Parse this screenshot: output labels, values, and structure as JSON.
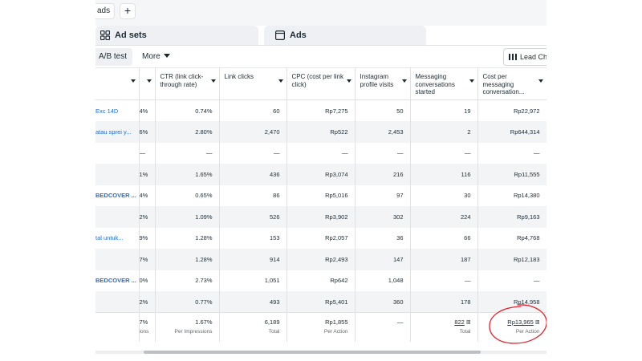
{
  "top_tabs": {
    "campaign_tab_label": "ads",
    "new_tab_label": "+"
  },
  "level_tabs": [
    {
      "label": "Ad sets",
      "icon": "grid-icon"
    },
    {
      "label": "Ads",
      "icon": "ad-icon"
    }
  ],
  "toolbar": {
    "ab_test_label": "A/B test",
    "more_label": "More",
    "lead_label": "Lead Cha"
  },
  "columns": [
    "CTR (link click-through rate)",
    "Link clicks",
    "CPC (cost per link click)",
    "Instagram profile visits",
    "Messaging conversations started",
    "Cost per messaging conversation..."
  ],
  "rows": [
    {
      "name": "Exc 14D",
      "bold": false,
      "partial": "4%",
      "ctr": "0.74%",
      "link_clicks": "60",
      "cpc": "Rp7,275",
      "ig_visits": "50",
      "msg_started": "19",
      "cost_per_msg": "Rp22,972"
    },
    {
      "name": "atau sprei y...",
      "bold": false,
      "partial": "6%",
      "ctr": "2.80%",
      "link_clicks": "2,470",
      "cpc": "Rp522",
      "ig_visits": "2,453",
      "msg_started": "2",
      "cost_per_msg": "Rp644,314"
    },
    {
      "name": "",
      "bold": false,
      "partial": "—",
      "ctr": "—",
      "link_clicks": "—",
      "cpc": "—",
      "ig_visits": "—",
      "msg_started": "—",
      "cost_per_msg": "—"
    },
    {
      "name": "",
      "bold": false,
      "partial": "1%",
      "ctr": "1.65%",
      "link_clicks": "436",
      "cpc": "Rp3,074",
      "ig_visits": "216",
      "msg_started": "116",
      "cost_per_msg": "Rp11,555"
    },
    {
      "name": "BEDCOVER ...",
      "bold": true,
      "partial": "4%",
      "ctr": "0.65%",
      "link_clicks": "86",
      "cpc": "Rp5,016",
      "ig_visits": "97",
      "msg_started": "30",
      "cost_per_msg": "Rp14,380"
    },
    {
      "name": "",
      "bold": false,
      "partial": "2%",
      "ctr": "1.09%",
      "link_clicks": "526",
      "cpc": "Rp3,902",
      "ig_visits": "302",
      "msg_started": "224",
      "cost_per_msg": "Rp9,163"
    },
    {
      "name": "tal untuk...",
      "bold": false,
      "partial": "9%",
      "ctr": "1.28%",
      "link_clicks": "153",
      "cpc": "Rp2,057",
      "ig_visits": "36",
      "msg_started": "66",
      "cost_per_msg": "Rp4,768"
    },
    {
      "name": "",
      "bold": false,
      "partial": "7%",
      "ctr": "1.28%",
      "link_clicks": "914",
      "cpc": "Rp2,493",
      "ig_visits": "147",
      "msg_started": "187",
      "cost_per_msg": "Rp12,183"
    },
    {
      "name": "BEDCOVER ...",
      "bold": true,
      "partial": "0%",
      "ctr": "2.73%",
      "link_clicks": "1,051",
      "cpc": "Rp642",
      "ig_visits": "1,048",
      "msg_started": "—",
      "cost_per_msg": "—"
    },
    {
      "name": "",
      "bold": false,
      "partial": "2%",
      "ctr": "0.77%",
      "link_clicks": "493",
      "cpc": "Rp5,401",
      "ig_visits": "360",
      "msg_started": "178",
      "cost_per_msg": "Rp14,958"
    }
  ],
  "totals": {
    "partial": "7%",
    "partial_sub": "ions",
    "ctr": "1.67%",
    "ctr_sub": "Per Impressions",
    "link_clicks": "6,189",
    "link_clicks_sub": "Total",
    "cpc": "Rp1,855",
    "cpc_sub": "Per Action",
    "ig_visits": "—",
    "msg_started": "822",
    "msg_started_sub": "Total",
    "cost_per_msg": "Rp13,965",
    "cost_per_msg_sub": "Per Action"
  },
  "annotation_color": "#e5202c"
}
